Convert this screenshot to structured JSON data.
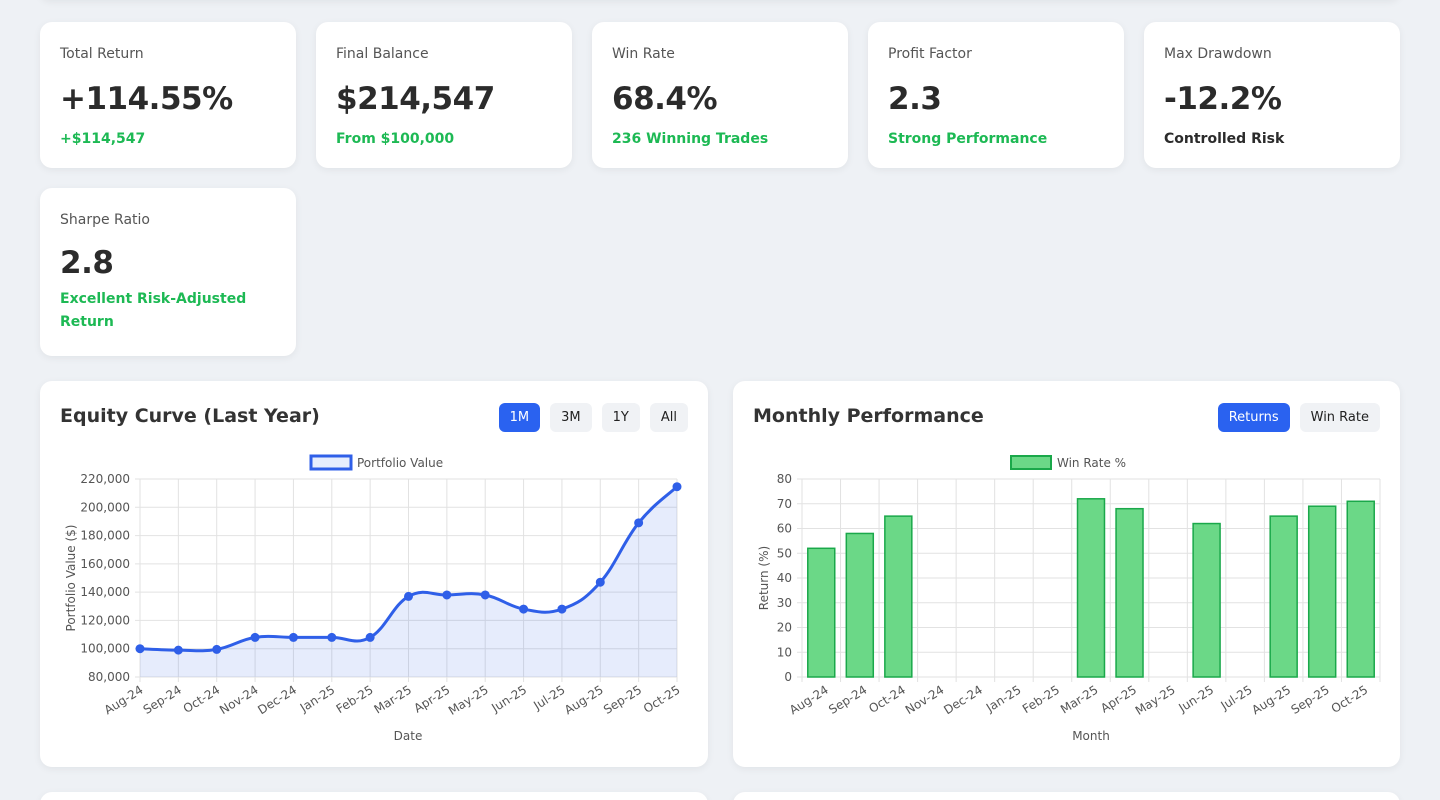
{
  "stats": [
    {
      "label": "Total Return",
      "value": "+114.55%",
      "sub": "+$114,547",
      "sub_color": "#1db954"
    },
    {
      "label": "Final Balance",
      "value": "$214,547",
      "sub": "From $100,000",
      "sub_color": "#1db954"
    },
    {
      "label": "Win Rate",
      "value": "68.4%",
      "sub": "236 Winning Trades",
      "sub_color": "#1db954"
    },
    {
      "label": "Profit Factor",
      "value": "2.3",
      "sub": "Strong Performance",
      "sub_color": "#1db954"
    },
    {
      "label": "Max Drawdown",
      "value": "-12.2%",
      "sub": "Controlled Risk",
      "sub_color": "#2b2b2b"
    },
    {
      "label": "Sharpe Ratio",
      "value": "2.8",
      "sub": "Excellent Risk-Adjusted Return",
      "sub_color": "#1db954"
    }
  ],
  "equity_panel": {
    "title": "Equity Curve (Last Year)",
    "buttons": [
      "1M",
      "3M",
      "1Y",
      "All"
    ],
    "active": "1M"
  },
  "monthly_panel": {
    "title": "Monthly Performance",
    "buttons": [
      "Returns",
      "Win Rate"
    ],
    "active": "Returns"
  },
  "colors": {
    "accent": "#2a62f0",
    "green": "#1db954",
    "line": "#2f5fe8",
    "bar_fill": "#6bd887",
    "bar_stroke": "#1aa84a"
  },
  "chart_data": [
    {
      "type": "line",
      "title": "",
      "legend": "Portfolio Value",
      "xlabel": "Date",
      "ylabel": "Portfolio Value ($)",
      "categories": [
        "Aug-24",
        "Sep-24",
        "Oct-24",
        "Nov-24",
        "Dec-24",
        "Jan-25",
        "Feb-25",
        "Mar-25",
        "Apr-25",
        "May-25",
        "Jun-25",
        "Jul-25",
        "Aug-25",
        "Sep-25",
        "Oct-25"
      ],
      "values": [
        100000,
        99000,
        99500,
        108000,
        108000,
        108000,
        108000,
        137000,
        138000,
        138000,
        128000,
        128000,
        147000,
        189000,
        214547
      ],
      "ylim": [
        80000,
        220000
      ],
      "yticks": [
        "80,000",
        "100,000",
        "120,000",
        "140,000",
        "160,000",
        "180,000",
        "200,000",
        "220,000"
      ],
      "fill": true
    },
    {
      "type": "bar",
      "title": "",
      "legend": "Win Rate %",
      "xlabel": "Month",
      "ylabel": "Return (%)",
      "categories": [
        "Aug-24",
        "Sep-24",
        "Oct-24",
        "Nov-24",
        "Dec-24",
        "Jan-25",
        "Feb-25",
        "Mar-25",
        "Apr-25",
        "May-25",
        "Jun-25",
        "Jul-25",
        "Aug-25",
        "Sep-25",
        "Oct-25"
      ],
      "values": [
        52,
        58,
        65,
        0,
        0,
        0,
        0,
        72,
        68,
        0,
        62,
        0,
        65,
        69,
        71
      ],
      "ylim": [
        0,
        80
      ],
      "yticks": [
        "0",
        "10",
        "20",
        "30",
        "40",
        "50",
        "60",
        "70",
        "80"
      ]
    }
  ]
}
